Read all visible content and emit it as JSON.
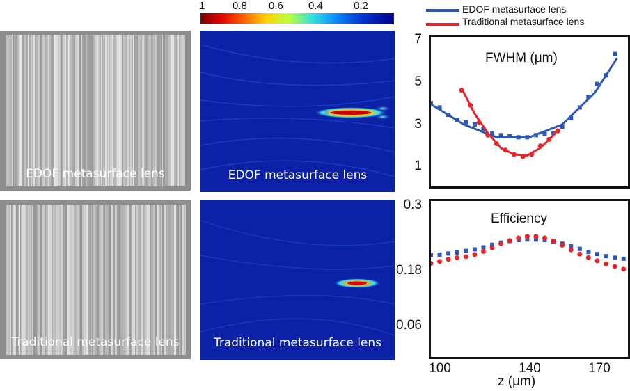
{
  "sem_panels": [
    {
      "label": "EDOF metasurface lens"
    },
    {
      "label": "Traditional metasurface lens"
    }
  ],
  "field_panels": [
    {
      "label": "EDOF metasurface lens"
    },
    {
      "label": "Traditional metasurface lens"
    }
  ],
  "colorbar": {
    "tick_labels": [
      "1",
      "0.8",
      "0.6",
      "0.4",
      "0.2"
    ],
    "colormap": "jet"
  },
  "legend": {
    "entries": [
      {
        "name": "EDOF metasurface lens",
        "color": "#2e58b8"
      },
      {
        "name": "Traditional metasurface lens",
        "color": "#e8242b"
      }
    ]
  },
  "colors": {
    "edof": "#2e58b8",
    "traditional": "#e8242b"
  },
  "chart_data": [
    {
      "type": "line",
      "title": "FWHM (μm)",
      "xlabel": "z (μm)",
      "ylabel": "",
      "xlim": [
        95,
        185
      ],
      "ylim": [
        0,
        7
      ],
      "yticks": [
        "7",
        "5",
        "3",
        "1"
      ],
      "grid": false,
      "series": [
        {
          "name": "EDOF metasurface lens",
          "marker": "square",
          "x": [
            95,
            99,
            103,
            107,
            111,
            115,
            119,
            123,
            127,
            131,
            135,
            139,
            143,
            147,
            151,
            155,
            159,
            163,
            167,
            171,
            175,
            179
          ],
          "y": [
            3.9,
            3.7,
            3.35,
            3.1,
            3.0,
            2.9,
            2.7,
            2.5,
            2.4,
            2.35,
            2.3,
            2.3,
            2.4,
            2.45,
            2.5,
            2.8,
            3.2,
            3.7,
            4.2,
            4.8,
            5.2,
            6.2
          ],
          "fit": {
            "x": [
              95,
              110,
              125,
              140,
              155,
              170,
              180
            ],
            "y": [
              3.85,
              2.9,
              2.3,
              2.3,
              2.9,
              4.4,
              6.0
            ]
          }
        },
        {
          "name": "Traditional metasurface lens",
          "marker": "circle",
          "x": [
            109,
            113,
            117,
            121,
            125,
            129,
            133,
            137,
            141,
            145,
            149,
            153
          ],
          "y": [
            4.5,
            3.8,
            3.0,
            2.4,
            2.0,
            1.7,
            1.5,
            1.4,
            1.5,
            1.9,
            2.2,
            2.6
          ],
          "fit": {
            "x": [
              109,
              115,
              121,
              127,
              133,
              139,
              145,
              151,
              153
            ],
            "y": [
              4.6,
              3.4,
              2.5,
              1.8,
              1.5,
              1.45,
              1.8,
              2.4,
              2.7
            ]
          }
        }
      ]
    },
    {
      "type": "scatter",
      "title": "Efficiency",
      "xlabel": "z (μm)",
      "ylabel": "",
      "xlim": [
        95,
        185
      ],
      "ylim": [
        0,
        0.3
      ],
      "yticks": [
        "0.3",
        "0.18",
        "0.06"
      ],
      "xticks": [
        "100",
        "140",
        "170"
      ],
      "grid": false,
      "series": [
        {
          "name": "EDOF metasurface lens",
          "marker": "square",
          "x": [
            95,
            99,
            103,
            107,
            111,
            115,
            119,
            123,
            127,
            131,
            135,
            139,
            143,
            147,
            151,
            155,
            159,
            163,
            167,
            171,
            175,
            179,
            183
          ],
          "y": [
            0.196,
            0.197,
            0.199,
            0.201,
            0.204,
            0.207,
            0.211,
            0.216,
            0.22,
            0.223,
            0.225,
            0.226,
            0.226,
            0.225,
            0.222,
            0.218,
            0.213,
            0.208,
            0.202,
            0.198,
            0.194,
            0.191,
            0.189
          ]
        },
        {
          "name": "Traditional metasurface lens",
          "marker": "circle",
          "x": [
            95,
            99,
            103,
            107,
            111,
            115,
            119,
            123,
            127,
            131,
            135,
            139,
            143,
            147,
            151,
            155,
            159,
            163,
            167,
            171,
            175,
            179,
            183
          ],
          "y": [
            0.18,
            0.184,
            0.188,
            0.191,
            0.193,
            0.197,
            0.203,
            0.21,
            0.218,
            0.224,
            0.229,
            0.232,
            0.232,
            0.229,
            0.223,
            0.215,
            0.206,
            0.198,
            0.191,
            0.185,
            0.179,
            0.174,
            0.169
          ]
        }
      ]
    }
  ]
}
